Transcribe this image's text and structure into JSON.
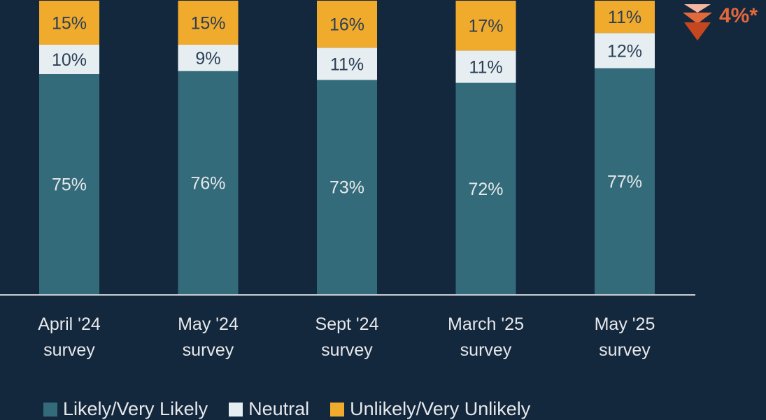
{
  "colors": {
    "background": "#13273d",
    "likely": "#336b7b",
    "neutral": "#e6eef2",
    "unlikely": "#f0aa2c",
    "annotation": "#e2693b",
    "axis": "#c9cfd4"
  },
  "annotation": {
    "text": "4%*",
    "icon": "down-triangle-stack-icon"
  },
  "chart_data": {
    "type": "bar",
    "stacked": true,
    "categories": [
      [
        "April '24",
        "survey"
      ],
      [
        "May '24",
        "survey"
      ],
      [
        "Sept '24",
        "survey"
      ],
      [
        "March '25",
        "survey"
      ],
      [
        "May '25",
        "survey"
      ]
    ],
    "series": [
      {
        "name": "Likely/Very Likely",
        "values": [
          75,
          76,
          73,
          72,
          77
        ],
        "labels": [
          "75%",
          "76%",
          "73%",
          "72%",
          "77%"
        ]
      },
      {
        "name": "Neutral",
        "values": [
          10,
          9,
          11,
          11,
          12
        ],
        "labels": [
          "10%",
          "9%",
          "11%",
          "11%",
          "12%"
        ]
      },
      {
        "name": "Unlikely/Very Unlikely",
        "values": [
          15,
          15,
          16,
          17,
          11
        ],
        "labels": [
          "15%",
          "15%",
          "16%",
          "17%",
          "11%"
        ]
      }
    ],
    "ylim": [
      0,
      100
    ],
    "legend_position": "bottom"
  }
}
